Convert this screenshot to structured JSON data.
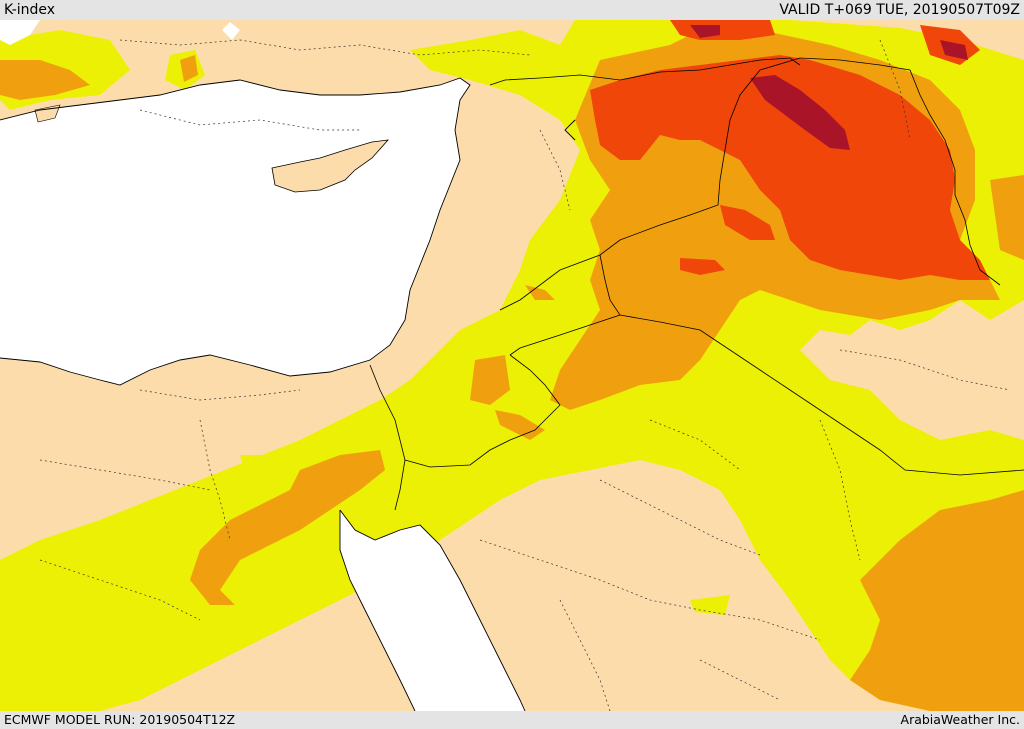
{
  "header": {
    "product_title": "K-index",
    "valid_time": "VALID T+069 TUE, 20190507T09Z"
  },
  "footer": {
    "model_run": "ECMWF MODEL RUN: 20190504T12Z",
    "provider": "ArabiaWeather Inc."
  },
  "map": {
    "region": "Eastern Mediterranean / Middle East",
    "colors": {
      "land_base": "#fcdcaa",
      "water": "#ffffff",
      "k_low": "#ecf005",
      "k_mid": "#f0a00f",
      "k_high": "#f0460a",
      "k_extreme": "#aa1428",
      "borders": "#000000"
    }
  }
}
